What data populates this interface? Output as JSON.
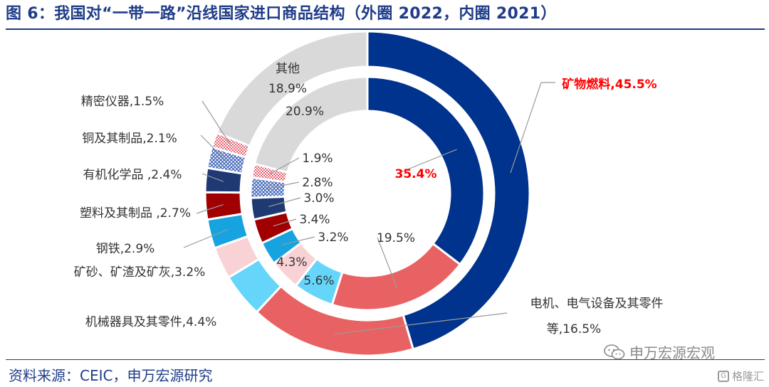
{
  "title": "图 6：我国对“一带一路”沿线国家进口商品结构（外圈 2022，内圈 2021）",
  "source": "资料来源：CEIC，申万宏源研究",
  "watermark": "申万宏源宏观",
  "corner_mark": "格隆汇",
  "chart_data": {
    "type": "pie",
    "title": "图 6：我国对“一带一路”沿线国家进口商品结构（外圈 2022，内圈 2021）",
    "categories": [
      "矿物燃料",
      "电机、电气设备及其零件等",
      "机械器具及其零件",
      "矿砂、矿渣及矿灰",
      "钢铁",
      "塑料及其制品",
      "有机化学品",
      "铜及其制品",
      "精密仪器",
      "其他"
    ],
    "series": [
      {
        "name": "2022",
        "values": [
          45.5,
          16.5,
          4.4,
          3.2,
          2.9,
          2.7,
          2.4,
          2.1,
          1.5,
          18.9
        ]
      },
      {
        "name": "2021",
        "values": [
          35.4,
          19.5,
          5.6,
          4.3,
          3.2,
          3.4,
          3.0,
          2.8,
          1.9,
          20.9
        ]
      }
    ],
    "colors": [
      "#00338D",
      "#E96263",
      "#66D5FA",
      "#F9D2D6",
      "#16A3E0",
      "#A00000",
      "#1F3A73",
      "#4A74C9",
      "#F28B98",
      "#D9D9D9"
    ],
    "patterns": [
      null,
      null,
      null,
      null,
      null,
      null,
      null,
      "crosshatch-blue",
      "checker-red",
      null
    ],
    "highlight_color": "#FF0000",
    "outer_labels": [
      "矿物燃料,45.5%",
      "等,16.5%",
      "机械器具及其零件,4.4%",
      "矿砂、矿渣及矿灰,3.2%",
      "钢铁,2.9%",
      "塑料及其制品 ,2.7%",
      "有机化学品 ,2.4%",
      "铜及其制品,2.1%",
      "精密仪器,1.5%",
      "18.9%"
    ],
    "outer_label_extra": {
      "electrical_line1": "电机、电气设备及其零件",
      "other_name": "其他"
    },
    "inner_labels": [
      "35.4%",
      "19.5%",
      "5.6%",
      "4.3%",
      "3.2%",
      "3.4%",
      "3.0%",
      "2.8%",
      "1.9%",
      "20.9%"
    ]
  }
}
